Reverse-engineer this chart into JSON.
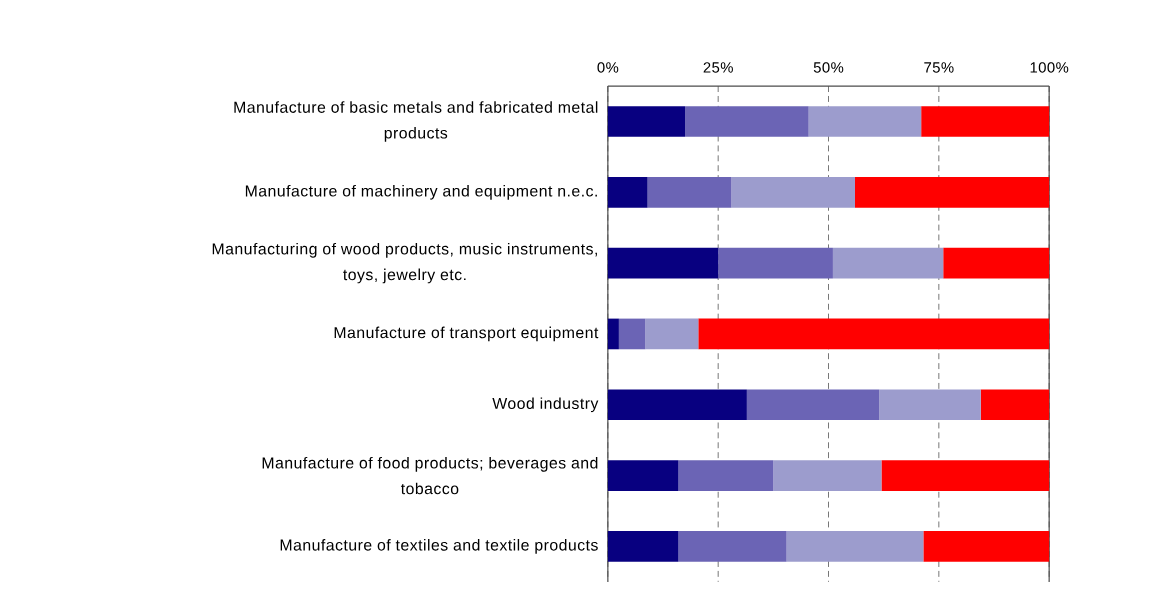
{
  "chart_data": {
    "type": "bar",
    "orientation": "horizontal",
    "stacked": true,
    "categories": [
      "Manufacture of basic metals and fabricated metal products",
      "Manufacture of machinery and equipment n.e.c.",
      "Manufacturing of wood products, music instruments, toys, jewelry etc.",
      "Manufacture of transport equipment",
      "Wood industry",
      "Manufacture of food products; beverages and tobacco",
      "Manufacture of textiles and textile products"
    ],
    "series": [
      {
        "color": "#080080",
        "values": [
          17.5,
          9,
          25,
          2.5,
          31.5,
          16,
          16
        ]
      },
      {
        "color": "#6b64b5",
        "values": [
          28,
          19,
          26,
          6,
          30,
          21.5,
          24.5
        ]
      },
      {
        "color": "#9c9ccd",
        "values": [
          25.5,
          28,
          25,
          12,
          23,
          24.5,
          31
        ]
      },
      {
        "color": "#ff0000",
        "values": [
          29,
          44,
          24,
          79.5,
          15.5,
          38,
          28.5
        ]
      }
    ],
    "xlim": [
      0,
      100
    ],
    "xticks": [
      {
        "value": 0,
        "label": "0%"
      },
      {
        "value": 25,
        "label": "25%"
      },
      {
        "value": 50,
        "label": "50%"
      },
      {
        "value": 75,
        "label": "75%"
      },
      {
        "value": 100,
        "label": "100%"
      }
    ],
    "grid": "x"
  }
}
